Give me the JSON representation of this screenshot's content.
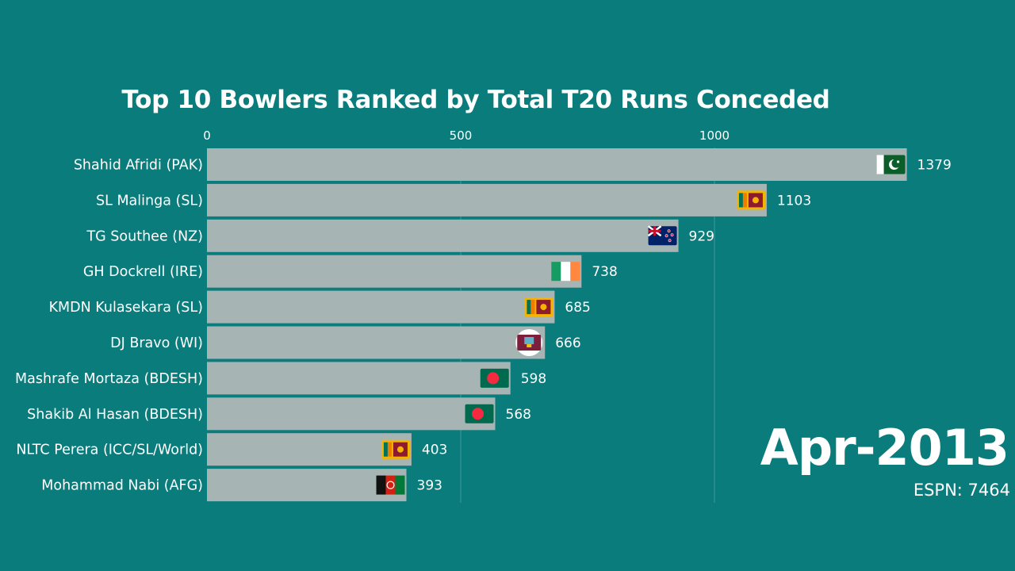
{
  "colors": {
    "background": "#0a7c7c",
    "bar": "#a6b4b4",
    "text": "#ffffff",
    "grid": "#3e9898"
  },
  "date_label": "Apr-2013",
  "source_label": "ESPN: 7464",
  "chart_data": {
    "type": "bar",
    "orientation": "horizontal",
    "title": "Top 10 Bowlers Ranked by Total T20 Runs Conceded",
    "xlabel": "",
    "ylabel": "",
    "xlim": [
      0,
      1000
    ],
    "x_ticks": [
      0,
      500,
      1000
    ],
    "x_tick_labels": [
      "0",
      "500",
      "1000"
    ],
    "grid": true,
    "categories": [
      "Shahid Afridi (PAK)",
      "SL Malinga (SL)",
      "TG Southee (NZ)",
      "GH Dockrell (IRE)",
      "KMDN Kulasekara (SL)",
      "DJ Bravo (WI)",
      "Mashrafe Mortaza (BDESH)",
      "Shakib Al Hasan (BDESH)",
      "NLTC Perera (ICC/SL/World)",
      "Mohammad Nabi (AFG)"
    ],
    "values": [
      1379,
      1103,
      929,
      738,
      685,
      666,
      598,
      568,
      403,
      393
    ],
    "value_labels": [
      "1379",
      "1103",
      "929",
      "738",
      "685",
      "666",
      "598",
      "568",
      "403",
      "393"
    ],
    "flag_icons": [
      "pakistan-flag-icon",
      "sri-lanka-flag-icon",
      "new-zealand-flag-icon",
      "ireland-flag-icon",
      "sri-lanka-flag-icon",
      "west-indies-flag-icon",
      "bangladesh-flag-icon",
      "bangladesh-flag-icon",
      "sri-lanka-flag-icon",
      "afghanistan-flag-icon"
    ]
  }
}
